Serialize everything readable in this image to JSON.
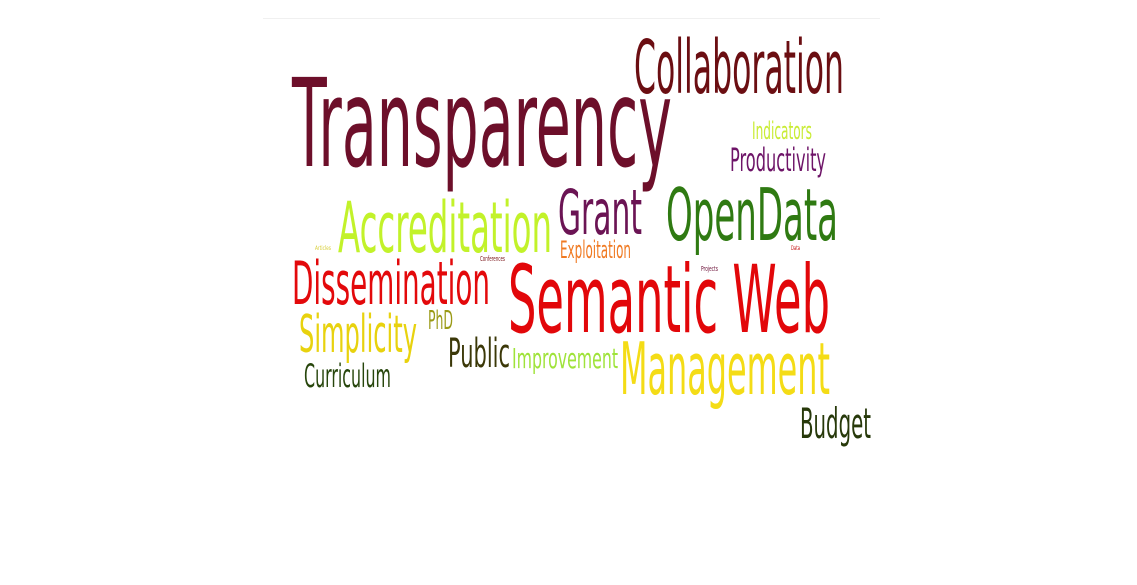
{
  "word_cloud": {
    "words": [
      {
        "text": "Collaboration",
        "color": "#6b0e12"
      },
      {
        "text": "Transparency",
        "color": "#6d0f2a"
      },
      {
        "text": "Indicators",
        "color": "#c9ec34"
      },
      {
        "text": "Productivity",
        "color": "#6e1468"
      },
      {
        "text": "Grant",
        "color": "#6b1454"
      },
      {
        "text": "OpenData",
        "color": "#2f7a12"
      },
      {
        "text": "Accreditation",
        "color": "#c2f22a"
      },
      {
        "text": "Exploitation",
        "color": "#f07a22"
      },
      {
        "text": "Dissemination",
        "color": "#e3090b"
      },
      {
        "text": "Semantic Web",
        "color": "#e2070a"
      },
      {
        "text": "Simplicity",
        "color": "#e8d20e"
      },
      {
        "text": "PhD",
        "color": "#9a9a16"
      },
      {
        "text": "Public",
        "color": "#3b3808"
      },
      {
        "text": "Improvement",
        "color": "#9fe33a"
      },
      {
        "text": "Management",
        "color": "#f4dc16"
      },
      {
        "text": "Curriculum",
        "color": "#27460c"
      },
      {
        "text": "Budget",
        "color": "#27390a"
      },
      {
        "text": "Conferences",
        "color": "#7a1418"
      },
      {
        "text": "Articles",
        "color": "#d8cf3a"
      },
      {
        "text": "Projects",
        "color": "#6b1038"
      },
      {
        "text": "Data",
        "color": "#c41010"
      }
    ]
  }
}
